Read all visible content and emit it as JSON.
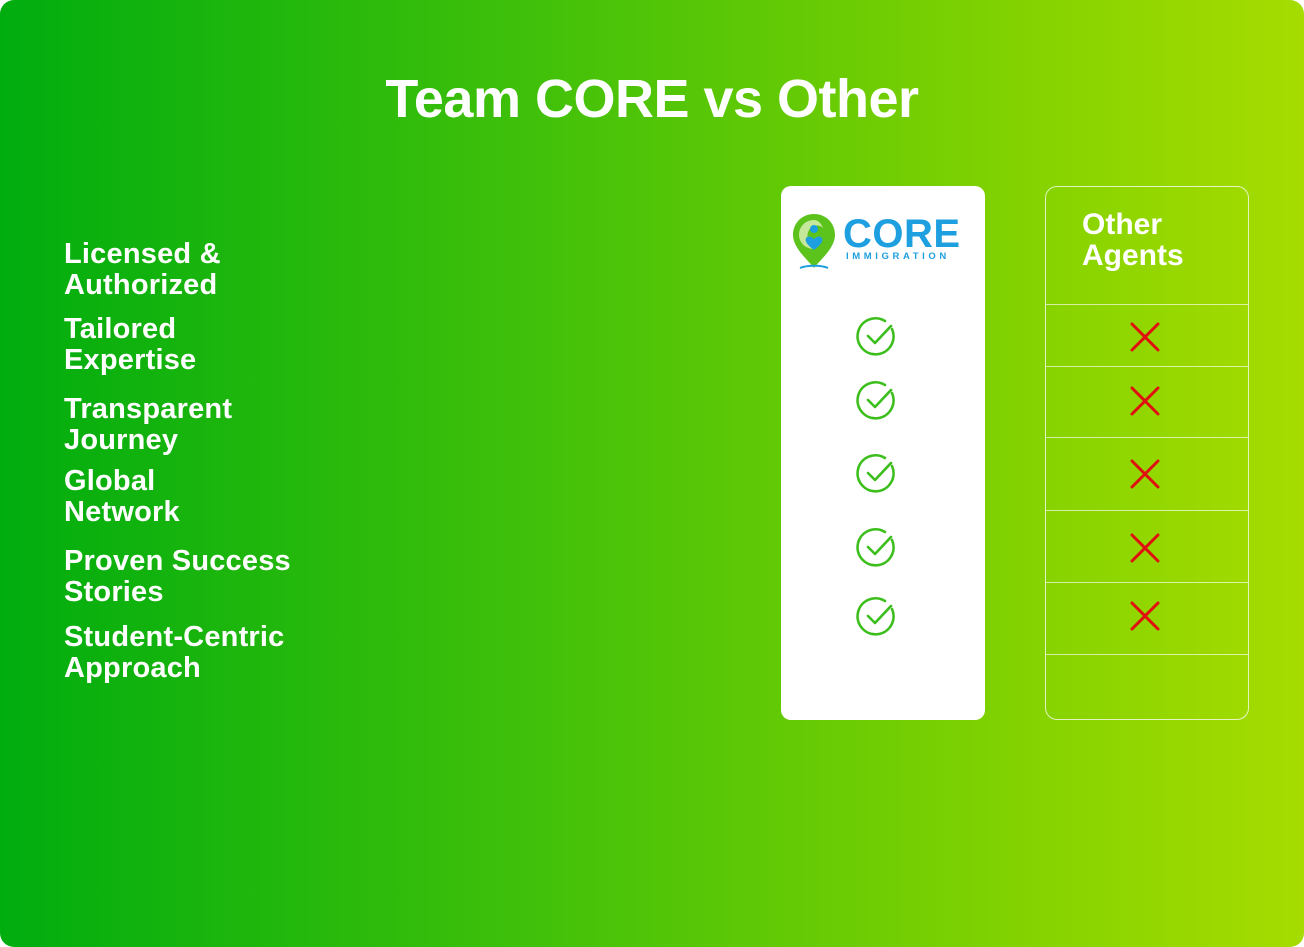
{
  "title": "Team CORE vs Other",
  "features": [
    {
      "line1": "Licensed &",
      "line2": "Authorized"
    },
    {
      "line1": "Tailored",
      "line2": "Expertise"
    },
    {
      "line1": "Transparent",
      "line2": "Journey"
    },
    {
      "line1": "Global",
      "line2": "Network"
    },
    {
      "line1": "Proven Success",
      "line2": "Stories"
    },
    {
      "line1": "Student-Centric",
      "line2": "Approach"
    }
  ],
  "core_column": {
    "logo_word": "CORE",
    "logo_sub": "IMMIGRATION",
    "icon": "check-circle-icon"
  },
  "other_column": {
    "title_line1": "Other",
    "title_line2": "Agents",
    "icon": "x-icon"
  },
  "colors": {
    "gradient_start": "#00ad0f",
    "gradient_end": "#a6dc00",
    "check": "#3cbe1c",
    "cross": "#e01010",
    "logo_blue": "#1e9fe0",
    "logo_green": "#5cc21c"
  }
}
